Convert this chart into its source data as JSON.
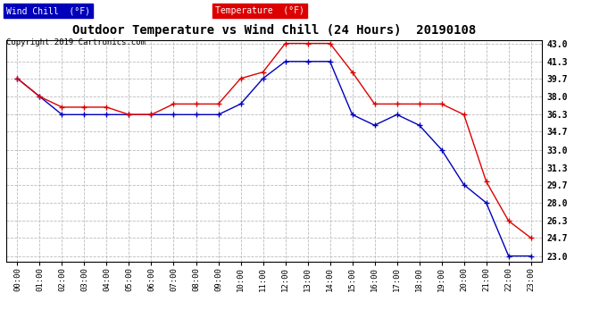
{
  "title": "Outdoor Temperature vs Wind Chill (24 Hours)  20190108",
  "copyright": "Copyright 2019 Cartronics.com",
  "hours": [
    "00:00",
    "01:00",
    "02:00",
    "03:00",
    "04:00",
    "05:00",
    "06:00",
    "07:00",
    "08:00",
    "09:00",
    "10:00",
    "11:00",
    "12:00",
    "13:00",
    "14:00",
    "15:00",
    "16:00",
    "17:00",
    "18:00",
    "19:00",
    "20:00",
    "21:00",
    "22:00",
    "23:00"
  ],
  "temperature": [
    39.7,
    38.0,
    37.0,
    37.0,
    37.0,
    36.3,
    36.3,
    37.3,
    37.3,
    37.3,
    39.7,
    40.3,
    43.0,
    43.0,
    43.0,
    40.3,
    37.3,
    37.3,
    37.3,
    37.3,
    36.3,
    30.0,
    26.3,
    24.7
  ],
  "wind_chill": [
    39.7,
    38.0,
    36.3,
    36.3,
    36.3,
    36.3,
    36.3,
    36.3,
    36.3,
    36.3,
    37.3,
    39.7,
    41.3,
    41.3,
    41.3,
    36.3,
    35.3,
    36.3,
    35.3,
    33.0,
    29.7,
    28.0,
    23.0,
    23.0
  ],
  "temp_color": "#dd0000",
  "wind_chill_color": "#0000bb",
  "ylim_min": 23.0,
  "ylim_max": 43.0,
  "yticks": [
    23.0,
    24.7,
    26.3,
    28.0,
    29.7,
    31.3,
    33.0,
    34.7,
    36.3,
    38.0,
    39.7,
    41.3,
    43.0
  ],
  "background_color": "#ffffff",
  "grid_color": "#bbbbbb",
  "legend_wind_chill_bg": "#0000bb",
  "legend_temp_bg": "#dd0000",
  "legend_wind_chill_text": "Wind Chill  (°F)",
  "legend_temp_text": "Temperature  (°F)"
}
